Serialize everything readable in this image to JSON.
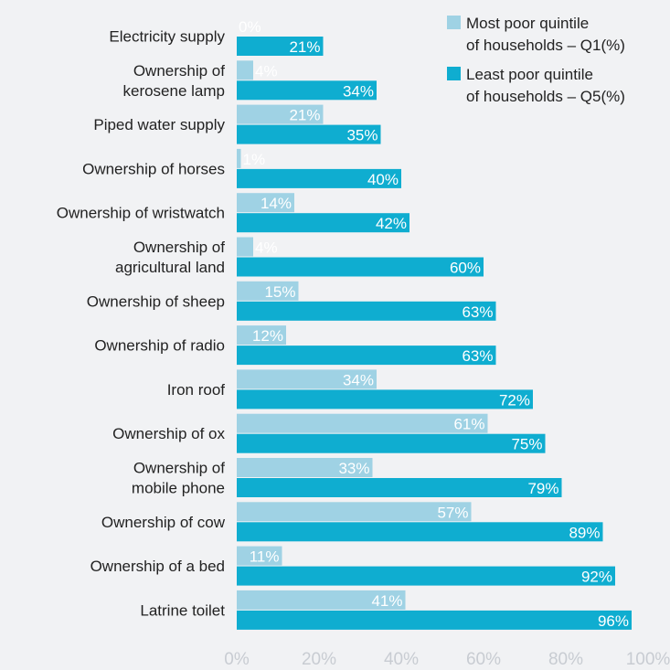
{
  "colors": {
    "q1": "#9fd2e4",
    "q5": "#0fadd0",
    "background": "#f1f2f4"
  },
  "legend": {
    "q1": [
      "Most poor quintile",
      "of households – Q1(%)"
    ],
    "q5": [
      "Least poor quintile",
      "of households – Q5(%)"
    ]
  },
  "chart_data": {
    "type": "bar",
    "orientation": "horizontal",
    "categories": [
      [
        "Electricity supply"
      ],
      [
        "Ownership of",
        "kerosene lamp"
      ],
      [
        "Piped water supply"
      ],
      [
        "Ownership of horses"
      ],
      [
        "Ownership of wristwatch"
      ],
      [
        "Ownership of",
        "agricultural land"
      ],
      [
        "Ownership of sheep"
      ],
      [
        "Ownership of radio"
      ],
      [
        "Iron roof"
      ],
      [
        "Ownership of ox"
      ],
      [
        "Ownership of",
        "mobile phone"
      ],
      [
        "Ownership of cow"
      ],
      [
        "Ownership of a bed"
      ],
      [
        "Latrine toilet"
      ]
    ],
    "series": [
      {
        "name": "Most poor quintile of households – Q1(%)",
        "values": [
          0,
          4,
          21,
          1,
          14,
          4,
          15,
          12,
          34,
          61,
          33,
          57,
          11,
          41
        ]
      },
      {
        "name": "Least poor quintile of households – Q5(%)",
        "values": [
          21,
          34,
          35,
          40,
          42,
          60,
          63,
          63,
          72,
          75,
          79,
          89,
          92,
          96
        ]
      }
    ],
    "x_ticks": [
      0,
      20,
      40,
      60,
      80,
      100
    ],
    "xlim": [
      0,
      100
    ],
    "value_suffix": "%",
    "grid": false,
    "legend_position": "top-right"
  }
}
